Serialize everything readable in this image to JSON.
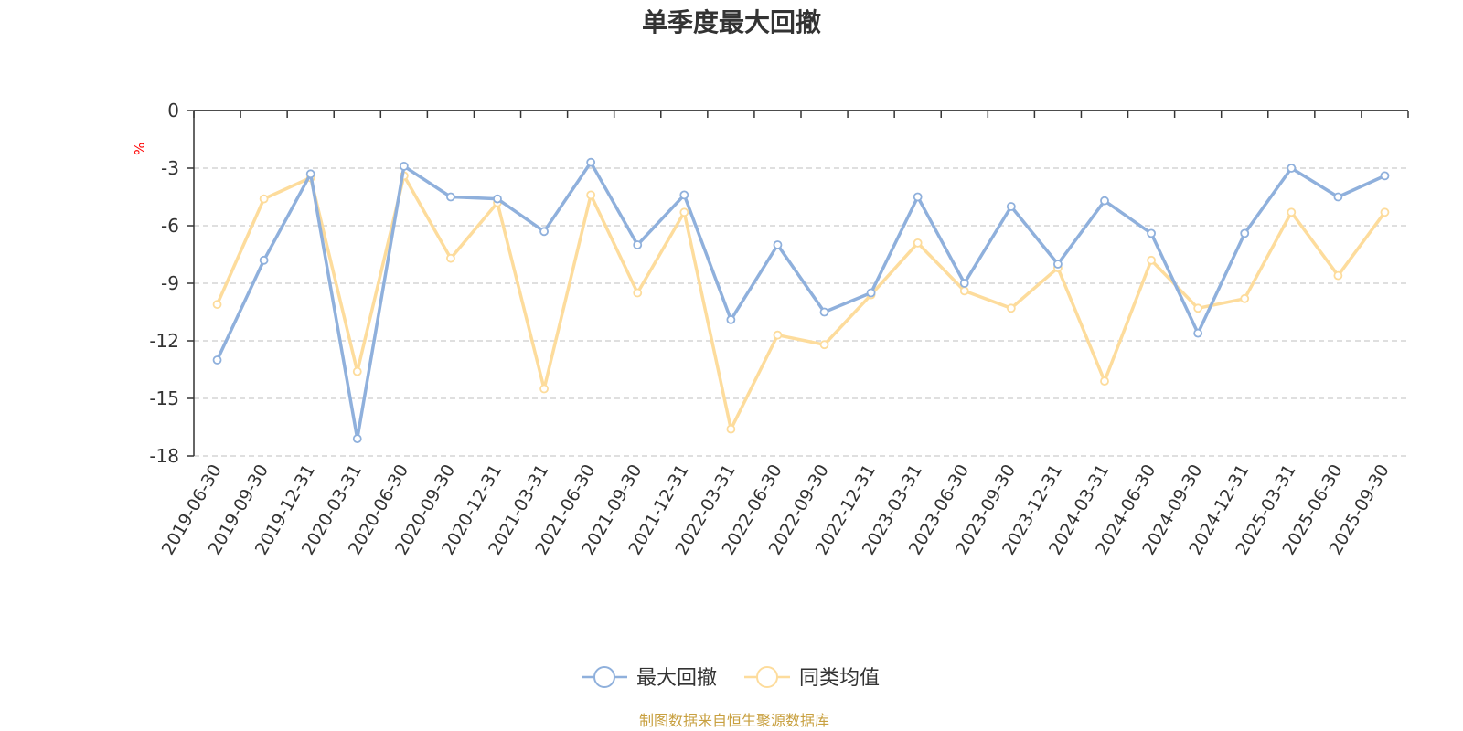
{
  "chart_data": {
    "type": "line",
    "title": "单季度最大回撤",
    "ylabel": "%",
    "xlabel": "",
    "ylim": [
      -18,
      0
    ],
    "yticks": [
      0,
      -3,
      -6,
      -9,
      -12,
      -15,
      -18
    ],
    "grid": true,
    "legend_position": "bottom-center",
    "categories": [
      "2019-06-30",
      "2019-09-30",
      "2019-12-31",
      "2020-03-31",
      "2020-06-30",
      "2020-09-30",
      "2020-12-31",
      "2021-03-31",
      "2021-06-30",
      "2021-09-30",
      "2021-12-31",
      "2022-03-31",
      "2022-06-30",
      "2022-09-30",
      "2022-12-31",
      "2023-03-31",
      "2023-06-30",
      "2023-09-30",
      "2023-12-31",
      "2024-03-31",
      "2024-06-30",
      "2024-09-30",
      "2024-12-31",
      "2025-03-31",
      "2025-06-30",
      "2025-09-30"
    ],
    "series": [
      {
        "name": "最大回撤",
        "color": "#8fb0dc",
        "values": [
          -13.0,
          -7.8,
          -3.3,
          -17.1,
          -2.9,
          -4.5,
          -4.6,
          -6.3,
          -2.7,
          -7.0,
          -4.4,
          -10.9,
          -7.0,
          -10.5,
          -9.5,
          -4.5,
          -9.0,
          -5.0,
          -8.0,
          -4.7,
          -6.4,
          -11.6,
          -6.4,
          -3.0,
          -4.5,
          -3.4
        ]
      },
      {
        "name": "同类均值",
        "color": "#fddc9c",
        "values": [
          -10.1,
          -4.6,
          -3.5,
          -13.6,
          -3.4,
          -7.7,
          -4.8,
          -14.5,
          -4.4,
          -9.5,
          -5.3,
          -16.6,
          -11.7,
          -12.2,
          -9.6,
          -6.9,
          -9.4,
          -10.3,
          -8.2,
          -14.1,
          -7.8,
          -10.3,
          -9.8,
          -5.3,
          -8.6,
          -5.3
        ]
      }
    ]
  },
  "footer": {
    "source": "制图数据来自恒生聚源数据库"
  },
  "colors": {
    "axis": "#333333",
    "grid": "#cccccc",
    "unit": "#ff0000",
    "source": "#c8a040"
  }
}
